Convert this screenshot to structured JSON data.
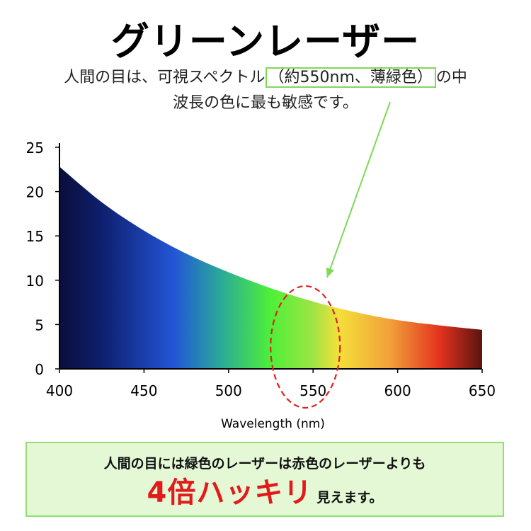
{
  "header": {
    "title": "グリーンレーザー",
    "sub_pre": "人間の目は、可視スペクトル",
    "sub_highlight": "（約550nm、薄緑色）",
    "sub_post": "の中",
    "sub_line2": "波長の色に最も敏感です。"
  },
  "chart_data": {
    "type": "area",
    "title": "",
    "xlabel": "Wavelength (nm)",
    "ylabel": "",
    "xlim": [
      400,
      650
    ],
    "ylim": [
      0,
      25
    ],
    "xticks": [
      400,
      450,
      500,
      550,
      600,
      650
    ],
    "yticks": [
      0,
      5,
      10,
      15,
      20,
      25
    ],
    "x": [
      400,
      425,
      450,
      475,
      500,
      525,
      550,
      575,
      600,
      625,
      650
    ],
    "y": [
      22.8,
      18.8,
      15.6,
      13.0,
      10.9,
      9.1,
      7.6,
      6.4,
      5.5,
      4.9,
      4.4
    ],
    "highlight_x": 550,
    "colors": {
      "violet": "#0a0e3a",
      "blue": "#2255d6",
      "green": "#4ef038",
      "yellow": "#f4e03a",
      "orange": "#f2a23a",
      "red": "#e3321e",
      "darkred": "#5a1410",
      "arrow": "#7ed957",
      "ellipse": "#e02020"
    }
  },
  "callout": {
    "line1": "人間の目には緑色のレーザーは赤色のレーザーよりも",
    "emphasis": "4倍ハッキリ",
    "tail": "見えます。"
  }
}
